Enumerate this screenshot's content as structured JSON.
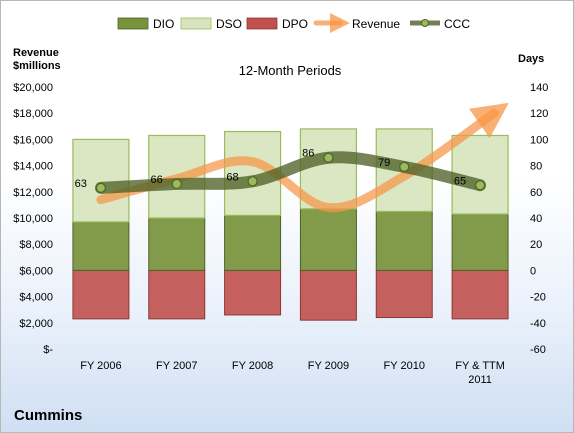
{
  "chart_data": {
    "type": "bar",
    "title": "12-Month Periods",
    "company": "Cummins",
    "left_axis_label": [
      "Revenue",
      "$millions"
    ],
    "right_axis_label": "Days",
    "categories": [
      "FY 2006",
      "FY 2007",
      "FY 2008",
      "FY 2009",
      "FY 2010",
      "FY & TTM 2011"
    ],
    "left_ylim": [
      0,
      20000
    ],
    "left_ticks": [
      "$-",
      "$2,000",
      "$4,000",
      "$6,000",
      "$8,000",
      "$10,000",
      "$12,000",
      "$14,000",
      "$16,000",
      "$18,000",
      "$20,000"
    ],
    "right_ylim": [
      -60,
      140
    ],
    "right_ticks": [
      "-60",
      "-40",
      "-20",
      "0",
      "20",
      "40",
      "60",
      "80",
      "100",
      "120",
      "140"
    ],
    "legend": [
      "DIO",
      "DSO",
      "DPO",
      "Revenue",
      "CCC"
    ],
    "legend_position": "top",
    "grid": false,
    "colors": {
      "DIO": "#77933c",
      "DSO": "#d7e4bd",
      "DPO": "#c0504d",
      "Revenue": "#f79646",
      "CCC": "#4f6228"
    },
    "series": [
      {
        "name": "DIO",
        "axis": "right",
        "stack": "days",
        "values": [
          37,
          40,
          42,
          47,
          45,
          43
        ]
      },
      {
        "name": "DSO",
        "axis": "right",
        "stack": "days",
        "values": [
          63,
          63,
          64,
          61,
          63,
          60
        ]
      },
      {
        "name": "DPO",
        "axis": "right",
        "stack": "days",
        "values": [
          -37,
          -37,
          -34,
          -38,
          -36,
          -37
        ]
      },
      {
        "name": "Revenue",
        "axis": "left",
        "type": "line",
        "values": [
          11400,
          13000,
          14300,
          10800,
          13200,
          18000
        ]
      },
      {
        "name": "CCC",
        "axis": "right",
        "type": "line",
        "values": [
          63,
          66,
          68,
          86,
          79,
          65
        ]
      }
    ],
    "ccc_labels": [
      "63",
      "66",
      "68",
      "86",
      "79",
      "65"
    ]
  }
}
